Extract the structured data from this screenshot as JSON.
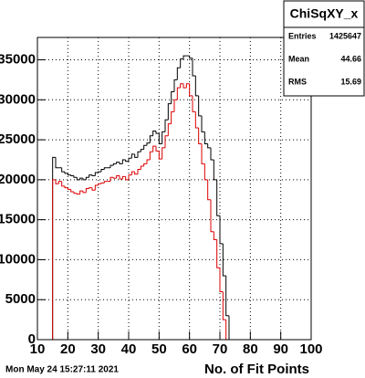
{
  "chart_data": {
    "type": "histogram",
    "bins": [
      15,
      16,
      17,
      18,
      19,
      20,
      21,
      22,
      23,
      24,
      25,
      26,
      27,
      28,
      29,
      30,
      31,
      32,
      33,
      34,
      35,
      36,
      37,
      38,
      39,
      40,
      41,
      42,
      43,
      44,
      45,
      46,
      47,
      48,
      49,
      50,
      51,
      52,
      53,
      54,
      55,
      56,
      57,
      58,
      59,
      60,
      61,
      62,
      63,
      64,
      65,
      66,
      67,
      68,
      69,
      70,
      71,
      72,
      73
    ],
    "series": [
      {
        "color": "#000000",
        "values": [
          22800,
          21500,
          21500,
          21000,
          20800,
          20600,
          20500,
          20300,
          20000,
          20200,
          20000,
          20300,
          20600,
          20500,
          20900,
          21000,
          21300,
          21500,
          21500,
          21800,
          22000,
          22200,
          22000,
          22500,
          22300,
          22700,
          23200,
          22800,
          23500,
          23800,
          24300,
          24600,
          25500,
          26100,
          25800,
          24500,
          26000,
          27500,
          29500,
          31000,
          32500,
          34000,
          35100,
          35500,
          35500,
          35200,
          33000,
          30500,
          28000,
          26000,
          24500,
          24000,
          22500,
          20000,
          15500,
          12000,
          8000,
          3000
        ]
      },
      {
        "color": "#dd0000",
        "values": [
          20000,
          19500,
          19800,
          19200,
          19000,
          18800,
          18500,
          18300,
          18200,
          18600,
          18400,
          18900,
          19000,
          18700,
          19300,
          19500,
          19600,
          19800,
          19800,
          20300,
          20200,
          20500,
          20100,
          20400,
          20000,
          20600,
          21000,
          20700,
          21300,
          21700,
          22000,
          22500,
          23500,
          24200,
          23600,
          22600,
          24000,
          25500,
          27000,
          28500,
          30000,
          31500,
          32000,
          31500,
          32000,
          30500,
          28500,
          26500,
          24500,
          22000,
          20000,
          17500,
          13500,
          12500,
          9000,
          6000,
          2500,
          0
        ]
      }
    ],
    "xlim": [
      10,
      100
    ],
    "xticks": [
      10,
      20,
      30,
      40,
      50,
      60,
      70,
      80,
      90,
      100
    ],
    "ylim": [
      0,
      37800
    ],
    "yticks": [
      0,
      5000,
      10000,
      15000,
      20000,
      25000,
      30000,
      35000
    ],
    "grid": true,
    "xlabel": "No. of Fit Points",
    "stats": {
      "title": "ChiSqXY_x",
      "rows": [
        [
          "Entries",
          "1425647"
        ],
        [
          "Mean",
          "44.66"
        ],
        [
          "RMS",
          "15.69"
        ]
      ]
    },
    "footer": "Mon May 24 15:27:11 2021"
  }
}
